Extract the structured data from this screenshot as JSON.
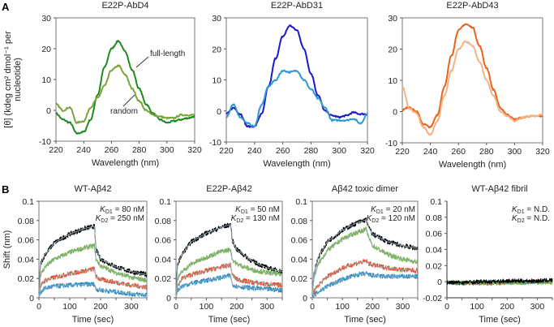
{
  "panel_labels": [
    "A",
    "B"
  ],
  "chart_data": [
    {
      "type": "line",
      "id": "a1",
      "title": "E22P-AbD4",
      "xlabel": "Wavelength (nm)",
      "ylabel": [
        "[θ] (kdeg cm² dmol⁻¹ per",
        "nucleotide)"
      ],
      "xlim": [
        220,
        320
      ],
      "ylim": [
        -10,
        30
      ],
      "xticks": [
        "220",
        "240",
        "260",
        "280",
        "300",
        "320"
      ],
      "yticks": [
        "-10",
        "0",
        "10",
        "20",
        "30"
      ],
      "x": [
        220,
        225,
        230,
        235,
        240,
        245,
        250,
        255,
        260,
        265,
        270,
        275,
        280,
        285,
        290,
        295,
        300,
        305,
        310,
        315,
        320
      ],
      "series": [
        {
          "name": "full-length",
          "color": "#1d8c1d",
          "values": [
            -1,
            -3,
            -4,
            -7.5,
            -7,
            -3,
            5,
            14,
            20,
            22.5,
            19,
            13,
            7,
            2,
            -1,
            -3,
            -4,
            -3.5,
            -3,
            -2.5,
            -2
          ]
        },
        {
          "name": "random",
          "color": "#7ba43a",
          "values": [
            2,
            0,
            1,
            -4,
            -3.5,
            1,
            4,
            8,
            13,
            14.5,
            11.5,
            7,
            3,
            0,
            -1.5,
            -2,
            -2.5,
            -2.5,
            -1.5,
            -1.5,
            -1.5
          ]
        }
      ],
      "annotations": [
        {
          "text": "full-length"
        },
        {
          "text": "random"
        }
      ]
    },
    {
      "type": "line",
      "id": "a2",
      "title": "E22P-AbD31",
      "xlabel": "Wavelength (nm)",
      "xlim": [
        220,
        320
      ],
      "ylim": [
        -10,
        30
      ],
      "xticks": [
        "220",
        "240",
        "260",
        "280",
        "300",
        "320"
      ],
      "yticks": [
        "-10",
        "0",
        "10",
        "20",
        "30"
      ],
      "x": [
        220,
        225,
        230,
        235,
        240,
        245,
        250,
        255,
        260,
        265,
        270,
        275,
        280,
        285,
        290,
        295,
        300,
        305,
        310,
        315,
        320
      ],
      "series": [
        {
          "name": "full-length",
          "color": "#1a1ac8",
          "values": [
            -1,
            1,
            -1,
            -5,
            -5,
            -1,
            8,
            17,
            24,
            27.5,
            26,
            20,
            12,
            5,
            0,
            -1.5,
            -2,
            -1.5,
            -0.5,
            -1,
            -1
          ]
        },
        {
          "name": "random",
          "color": "#2e98d6",
          "values": [
            -2,
            2,
            -2,
            -4,
            -5,
            2,
            8,
            10,
            13,
            12.5,
            13,
            10,
            7,
            4,
            1,
            -3,
            -3,
            -3,
            -2.5,
            -4,
            -1
          ]
        }
      ]
    },
    {
      "type": "line",
      "id": "a3",
      "title": "E22P-AbD43",
      "xlabel": "Wavelength (nm)",
      "xlim": [
        220,
        320
      ],
      "ylim": [
        -10,
        30
      ],
      "xticks": [
        "220",
        "240",
        "260",
        "280",
        "300",
        "320"
      ],
      "yticks": [
        "-10",
        "0",
        "10",
        "20",
        "30"
      ],
      "x": [
        220,
        225,
        230,
        235,
        240,
        245,
        250,
        255,
        260,
        265,
        270,
        275,
        280,
        285,
        290,
        295,
        300,
        305,
        310,
        315,
        320
      ],
      "series": [
        {
          "name": "full-length",
          "color": "#e8621c",
          "values": [
            0.5,
            1.5,
            0,
            -4,
            -5,
            -1,
            8,
            18,
            26,
            28,
            27,
            21,
            14,
            7,
            1,
            -1,
            -2.5,
            -2,
            -1.5,
            -1.5,
            -1.5
          ]
        },
        {
          "name": "random",
          "color": "#f5b283",
          "values": [
            8,
            1,
            -0.5,
            -5,
            -7.5,
            -3,
            5,
            13,
            20,
            22.5,
            21,
            16,
            10,
            5,
            0,
            -1.5,
            -3,
            -2,
            -1.5,
            -1.5,
            -1
          ]
        }
      ]
    },
    {
      "type": "line",
      "id": "b1",
      "title": "WT-Aβ42",
      "xlabel": "Time (sec)",
      "ylabel": "Shift (nm)",
      "xlim": [
        0,
        350
      ],
      "ylim": [
        0,
        0.1
      ],
      "xticks": [
        "0",
        "100",
        "200",
        "300"
      ],
      "yticks": [
        "0",
        "0.02",
        "0.04",
        "0.06",
        "0.08",
        "0.1"
      ],
      "kd": [
        {
          "k": "K",
          "sub": "D1",
          "val": " = 80 nM"
        },
        {
          "k": "K",
          "sub": "D2",
          "val": " = 250 nM"
        }
      ],
      "x": [
        0,
        5,
        20,
        50,
        100,
        150,
        180,
        185,
        200,
        250,
        300,
        350
      ],
      "series": [
        {
          "color": "#000000",
          "values": [
            0,
            0.035,
            0.045,
            0.057,
            0.066,
            0.072,
            0.074,
            0.05,
            0.04,
            0.032,
            0.027,
            0.024
          ]
        },
        {
          "color": "#76b447",
          "values": [
            0,
            0.024,
            0.032,
            0.04,
            0.047,
            0.052,
            0.054,
            0.04,
            0.033,
            0.026,
            0.021,
            0.018
          ]
        },
        {
          "color": "#e0522c",
          "values": [
            0,
            0.012,
            0.018,
            0.021,
            0.025,
            0.028,
            0.03,
            0.022,
            0.019,
            0.016,
            0.013,
            0.011
          ]
        },
        {
          "color": "#2a8cc4",
          "values": [
            0,
            0.006,
            0.01,
            0.012,
            0.013,
            0.014,
            0.014,
            0.009,
            0.008,
            0.006,
            0.004,
            0.003
          ]
        }
      ]
    },
    {
      "type": "line",
      "id": "b2",
      "title": "E22P-Aβ42",
      "xlabel": "Time (sec)",
      "xlim": [
        0,
        350
      ],
      "ylim": [
        0,
        0.1
      ],
      "xticks": [
        "0",
        "100",
        "200",
        "300"
      ],
      "yticks": [
        "0",
        "0.02",
        "0.04",
        "0.06",
        "0.08",
        "0.1"
      ],
      "kd": [
        {
          "k": "K",
          "sub": "D1",
          "val": " = 50 nM"
        },
        {
          "k": "K",
          "sub": "D2",
          "val": " = 130 nM"
        }
      ],
      "x": [
        0,
        5,
        20,
        50,
        100,
        150,
        180,
        185,
        200,
        250,
        300,
        350
      ],
      "series": [
        {
          "color": "#000000",
          "values": [
            0,
            0.035,
            0.045,
            0.058,
            0.067,
            0.073,
            0.076,
            0.06,
            0.05,
            0.038,
            0.031,
            0.027
          ]
        },
        {
          "color": "#76b447",
          "values": [
            0,
            0.02,
            0.027,
            0.035,
            0.042,
            0.048,
            0.05,
            0.04,
            0.035,
            0.029,
            0.026,
            0.024
          ]
        },
        {
          "color": "#e0522c",
          "values": [
            0,
            0.012,
            0.02,
            0.024,
            0.028,
            0.032,
            0.034,
            0.024,
            0.019,
            0.016,
            0.014,
            0.013
          ]
        },
        {
          "color": "#2a8cc4",
          "values": [
            0,
            0.008,
            0.012,
            0.015,
            0.018,
            0.021,
            0.023,
            0.014,
            0.012,
            0.01,
            0.009,
            0.008
          ]
        }
      ]
    },
    {
      "type": "line",
      "id": "b3",
      "title": "Aβ42 toxic dimer",
      "xlabel": "Time (sec)",
      "xlim": [
        0,
        350
      ],
      "ylim": [
        0,
        0.1
      ],
      "xticks": [
        "0",
        "100",
        "200",
        "300"
      ],
      "yticks": [
        "0",
        "0.02",
        "0.04",
        "0.06",
        "0.08",
        "0.1"
      ],
      "kd": [
        {
          "k": "K",
          "sub": "D1",
          "val": " = 20 nM"
        },
        {
          "k": "K",
          "sub": "D2",
          "val": " = 120 nM"
        }
      ],
      "x": [
        0,
        5,
        20,
        50,
        100,
        150,
        180,
        185,
        200,
        250,
        300,
        350
      ],
      "series": [
        {
          "color": "#000000",
          "values": [
            0,
            0.025,
            0.042,
            0.058,
            0.07,
            0.078,
            0.081,
            0.074,
            0.066,
            0.058,
            0.054,
            0.051
          ]
        },
        {
          "color": "#76b447",
          "values": [
            0,
            0.02,
            0.035,
            0.049,
            0.061,
            0.068,
            0.071,
            0.064,
            0.054,
            0.045,
            0.04,
            0.037
          ]
        },
        {
          "color": "#e0522c",
          "values": [
            0,
            0.006,
            0.013,
            0.022,
            0.031,
            0.036,
            0.038,
            0.036,
            0.034,
            0.031,
            0.029,
            0.028
          ]
        },
        {
          "color": "#2a8cc4",
          "values": [
            0,
            0.002,
            0.006,
            0.012,
            0.019,
            0.024,
            0.025,
            0.024,
            0.023,
            0.022,
            0.022,
            0.022
          ]
        }
      ]
    },
    {
      "type": "line",
      "id": "b4",
      "title": "WT-Aβ42 fibril",
      "xlabel": "Time (sec)",
      "xlim": [
        0,
        350
      ],
      "ylim": [
        -0.02,
        0.1
      ],
      "xticks": [
        "0",
        "100",
        "200",
        "300"
      ],
      "yticks": [
        "-0.02",
        "0",
        "0.02",
        "0.04",
        "0.06",
        "0.08",
        "0.1"
      ],
      "kd": [
        {
          "k": "K",
          "sub": "D1",
          "val": " = N.D."
        },
        {
          "k": "K",
          "sub": "D2",
          "val": " = N.D."
        }
      ],
      "x": [
        0,
        50,
        100,
        150,
        200,
        250,
        300,
        350
      ],
      "series": [
        {
          "color": "#e0522c",
          "values": [
            -0.001,
            -0.002,
            -0.002,
            -0.002,
            -0.001,
            -0.001,
            0,
            0
          ]
        },
        {
          "color": "#2a8cc4",
          "values": [
            -0.001,
            -0.002,
            -0.001,
            -0.001,
            -0.001,
            -0.001,
            0,
            0
          ]
        },
        {
          "color": "#76b447",
          "values": [
            -0.001,
            -0.001,
            -0.001,
            -0.001,
            -0.001,
            -0.001,
            -0.001,
            -0.001
          ]
        },
        {
          "color": "#000000",
          "values": [
            -0.001,
            -0.001,
            0,
            0,
            0.001,
            0.001,
            0.001,
            0.002
          ]
        }
      ]
    }
  ]
}
